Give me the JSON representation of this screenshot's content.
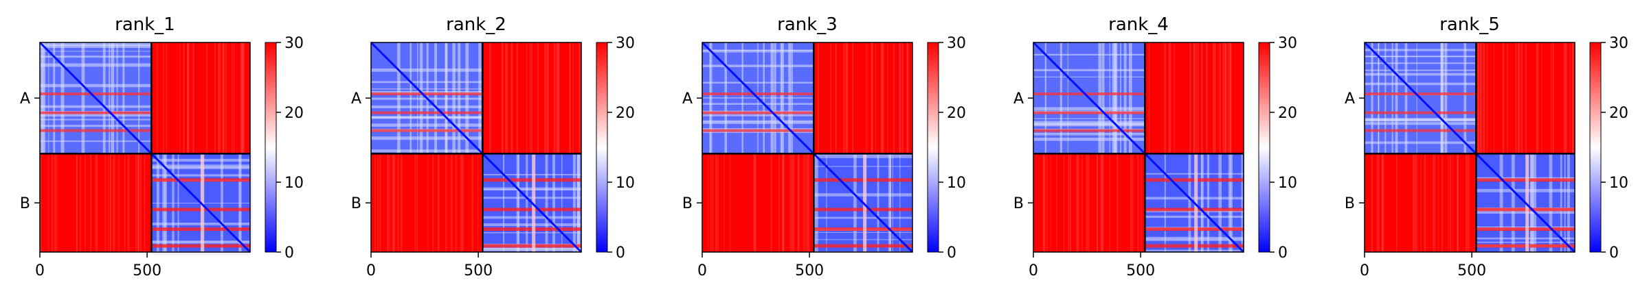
{
  "chart_data": [
    {
      "type": "heatmap",
      "title": "rank_1",
      "xlim": [
        0,
        980
      ],
      "x_ticks": [
        "0",
        "500"
      ],
      "x_tick_values": [
        0,
        500
      ],
      "y_tick_labels": [
        "A",
        "B"
      ],
      "chain_boundary": 520,
      "colorbar": {
        "min": 0,
        "max": 30,
        "ticks": [
          "0",
          "10",
          "20",
          "30"
        ],
        "colors": [
          "#0000ff",
          "#ffffff",
          "#ff0000"
        ]
      },
      "grid": false
    },
    {
      "type": "heatmap",
      "title": "rank_2",
      "xlim": [
        0,
        980
      ],
      "x_ticks": [
        "0",
        "500"
      ],
      "x_tick_values": [
        0,
        500
      ],
      "y_tick_labels": [
        "A",
        "B"
      ],
      "chain_boundary": 520,
      "colorbar": {
        "min": 0,
        "max": 30,
        "ticks": [
          "0",
          "10",
          "20",
          "30"
        ],
        "colors": [
          "#0000ff",
          "#ffffff",
          "#ff0000"
        ]
      },
      "grid": false
    },
    {
      "type": "heatmap",
      "title": "rank_3",
      "xlim": [
        0,
        980
      ],
      "x_ticks": [
        "0",
        "500"
      ],
      "x_tick_values": [
        0,
        500
      ],
      "y_tick_labels": [
        "A",
        "B"
      ],
      "chain_boundary": 520,
      "colorbar": {
        "min": 0,
        "max": 30,
        "ticks": [
          "0",
          "10",
          "20",
          "30"
        ],
        "colors": [
          "#0000ff",
          "#ffffff",
          "#ff0000"
        ]
      },
      "grid": false
    },
    {
      "type": "heatmap",
      "title": "rank_4",
      "xlim": [
        0,
        980
      ],
      "x_ticks": [
        "0",
        "500"
      ],
      "x_tick_values": [
        0,
        500
      ],
      "y_tick_labels": [
        "A",
        "B"
      ],
      "chain_boundary": 520,
      "colorbar": {
        "min": 0,
        "max": 30,
        "ticks": [
          "0",
          "10",
          "20",
          "30"
        ],
        "colors": [
          "#0000ff",
          "#ffffff",
          "#ff0000"
        ]
      },
      "grid": false
    },
    {
      "type": "heatmap",
      "title": "rank_5",
      "xlim": [
        0,
        980
      ],
      "x_ticks": [
        "0",
        "500"
      ],
      "x_tick_values": [
        0,
        500
      ],
      "y_tick_labels": [
        "A",
        "B"
      ],
      "chain_boundary": 520,
      "colorbar": {
        "min": 0,
        "max": 30,
        "ticks": [
          "0",
          "10",
          "20",
          "30"
        ],
        "colors": [
          "#0000ff",
          "#ffffff",
          "#ff0000"
        ]
      },
      "grid": false
    }
  ]
}
